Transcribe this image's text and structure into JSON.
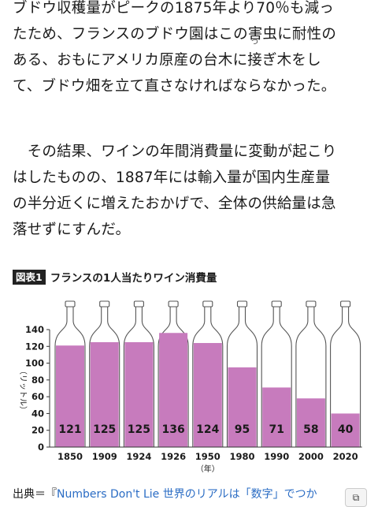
{
  "article": {
    "paragraph1": [
      "ブドウ収穫量がピークの1875年より70％も減っ",
      "たため、フランスのブドウ園はこの害虫に耐性の",
      "ある、おもにアメリカ原産の台木に",
      "ぎ木をし",
      "て、ブドウ畑を立て直さなければならなかった。"
    ],
    "ruby_base": "接",
    "ruby_text": "つ",
    "paragraph2": [
      "　その結果、ワインの年間消費量に変動が起こり",
      "はしたものの、1887年には輸入量が国内生産量",
      "の半分近くに増えたおかげで、全体の供給量は急",
      "落せずにすんだ。"
    ]
  },
  "figure": {
    "badge": "図表1",
    "title": "フランスの1人当たりワイン消費量",
    "source_prefix": "出典＝『",
    "source_link": "Numbers Don't Lie 世界のリアルは「数字」でつか"
  },
  "chart_data": {
    "type": "bar",
    "title": "フランスの1人当たりワイン消費量",
    "categories": [
      "1850",
      "1909",
      "1924",
      "1926",
      "1950",
      "1980",
      "1990",
      "2000",
      "2020"
    ],
    "values": [
      121,
      125,
      125,
      136,
      124,
      95,
      71,
      58,
      40
    ],
    "ylabel": "（リットル）",
    "xlabel": "（年）",
    "ylim": [
      0,
      140
    ],
    "yticks": [
      "0",
      "20",
      "40",
      "60",
      "80",
      "100",
      "120",
      "140"
    ],
    "bar_color": "#c77bbd",
    "bar_shape": "wine-bottle",
    "highlight_index": 3
  },
  "colors": {
    "accent": "#c77bbd",
    "link": "#2a6cc4"
  },
  "icons": {
    "copy": "copy-icon"
  }
}
